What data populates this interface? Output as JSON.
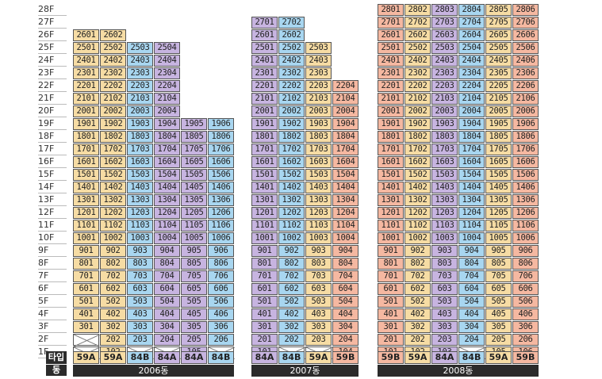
{
  "colors": {
    "59A": "#f6dca4",
    "59B": "#f5b8a1",
    "84A": "#c7b4e0",
    "84B": "#a8d6f0",
    "empty": "#ffffff",
    "bar": "#2b2b2b"
  },
  "floors": [
    "28F",
    "27F",
    "26F",
    "25F",
    "24F",
    "23F",
    "22F",
    "21F",
    "20F",
    "19F",
    "18F",
    "17F",
    "16F",
    "15F",
    "14F",
    "13F",
    "12F",
    "11F",
    "10F",
    "9F",
    "8F",
    "7F",
    "6F",
    "5F",
    "4F",
    "3F",
    "2F",
    "1F"
  ],
  "labels": {
    "type": "타입",
    "dong": "동"
  },
  "buildings": [
    {
      "name": "2006동",
      "columns": [
        {
          "type": "59A",
          "suffix": "01",
          "minFloor": 3,
          "maxFloor": 26,
          "blank": [
            1,
            2
          ]
        },
        {
          "type": "59A",
          "suffix": "02",
          "minFloor": 1,
          "maxFloor": 26,
          "blank": []
        },
        {
          "type": "84B",
          "suffix": "03",
          "minFloor": 2,
          "maxFloor": 25,
          "blank": [
            1
          ]
        },
        {
          "type": "84A",
          "suffix": "04",
          "minFloor": 2,
          "maxFloor": 25,
          "blank": [
            1
          ]
        },
        {
          "type": "84A",
          "suffix": "05",
          "minFloor": 1,
          "maxFloor": 19,
          "blank": []
        },
        {
          "type": "84B",
          "suffix": "06",
          "minFloor": 2,
          "maxFloor": 19,
          "blank": [
            1
          ]
        }
      ]
    },
    {
      "name": "2007동",
      "columns": [
        {
          "type": "84A",
          "suffix": "01",
          "minFloor": 1,
          "maxFloor": 27,
          "blank": []
        },
        {
          "type": "84B",
          "suffix": "02",
          "minFloor": 2,
          "maxFloor": 27,
          "blank": [
            1
          ]
        },
        {
          "type": "59A",
          "suffix": "03",
          "minFloor": 2,
          "maxFloor": 25,
          "blank": [
            1
          ]
        },
        {
          "type": "59B",
          "suffix": "04",
          "minFloor": 1,
          "maxFloor": 22,
          "blank": []
        }
      ]
    },
    {
      "name": "2008동",
      "columns": [
        {
          "type": "59B",
          "suffix": "01",
          "minFloor": 1,
          "maxFloor": 28,
          "blank": []
        },
        {
          "type": "59A",
          "suffix": "02",
          "minFloor": 1,
          "maxFloor": 28,
          "blank": []
        },
        {
          "type": "84A",
          "suffix": "03",
          "minFloor": 1,
          "maxFloor": 28,
          "blank": []
        },
        {
          "type": "84B",
          "suffix": "04",
          "minFloor": 2,
          "maxFloor": 28,
          "blank": [
            1
          ]
        },
        {
          "type": "59A",
          "suffix": "05",
          "minFloor": 1,
          "maxFloor": 28,
          "blank": []
        },
        {
          "type": "59B",
          "suffix": "06",
          "minFloor": 1,
          "maxFloor": 28,
          "blank": []
        }
      ]
    }
  ]
}
